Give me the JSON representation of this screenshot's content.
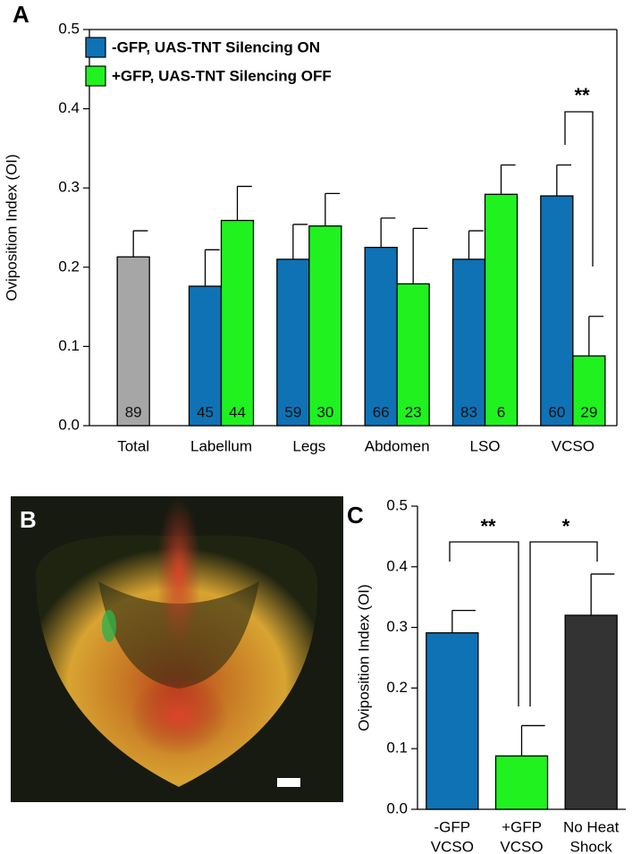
{
  "chart_data": [
    {
      "type": "bar",
      "panel_label": "A",
      "y_label": "Oviposition Index (OI)",
      "categories": [
        "Total",
        "Labellum",
        "Legs",
        "Abdomen",
        "LSO",
        "VCSO"
      ],
      "ylim": [
        0,
        0.5
      ],
      "yticks": [
        {
          "value": 0,
          "label": "0.0"
        },
        0.1,
        0.2,
        0.3,
        0.4,
        0.5
      ],
      "series": [
        {
          "name": "-GFP, UAS-TNT Silencing ON",
          "color": "#0e72b5",
          "values": [
            null,
            0.176,
            0.21,
            0.225,
            0.21,
            0.29
          ],
          "errors": [
            null,
            0.046,
            0.044,
            0.037,
            0.036,
            0.039
          ],
          "n": [
            null,
            45,
            59,
            66,
            83,
            60
          ]
        },
        {
          "name": "+GFP, UAS-TNT Silencing OFF",
          "color": "#1ff21f",
          "values": [
            null,
            0.259,
            0.252,
            0.179,
            0.292,
            0.088
          ],
          "errors": [
            null,
            0.043,
            0.041,
            0.07,
            0.037,
            0.05
          ],
          "n": [
            null,
            44,
            30,
            23,
            6,
            29
          ]
        },
        {
          "color": "#a6a6a6",
          "values": [
            0.213,
            null,
            null,
            null,
            null,
            null
          ],
          "errors": [
            0.033,
            null,
            null,
            null,
            null,
            null
          ],
          "n": [
            89,
            null,
            null,
            null,
            null,
            null
          ]
        }
      ],
      "annotations": [
        {
          "text": "**"
        }
      ]
    },
    {
      "type": "bar",
      "panel_label": "C",
      "y_label": "Oviposition Index (OI)",
      "categories": [
        [
          "-GFP",
          "VCSO"
        ],
        [
          "+GFP",
          "VCSO"
        ],
        [
          "No Heat",
          "Shock"
        ]
      ],
      "values": [
        0.291,
        0.088,
        0.32
      ],
      "errors": [
        0.037,
        0.05,
        0.068
      ],
      "colors": [
        "#0e72b5",
        "#1ff21f",
        "#333333"
      ],
      "ylim": [
        0,
        0.5
      ],
      "yticks": [
        {
          "value": 0,
          "label": "0.0"
        },
        0.1,
        0.2,
        0.3,
        0.4,
        0.5
      ],
      "annotations": [
        {
          "text": "**"
        },
        {
          "text": "*"
        }
      ]
    }
  ],
  "image_panel": {
    "panel_label": "B"
  }
}
